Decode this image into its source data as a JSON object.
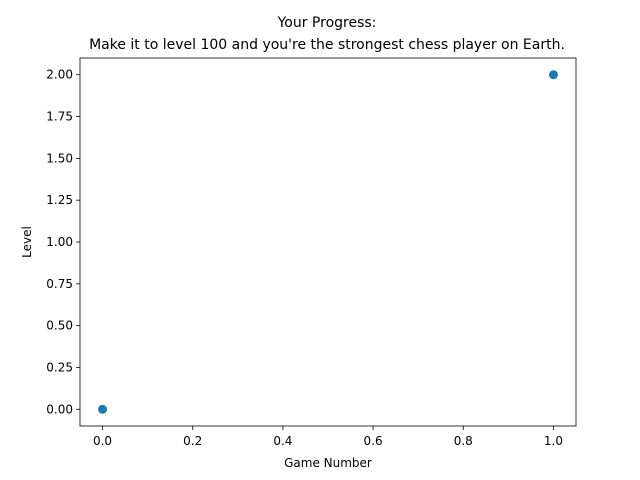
{
  "chart_data": {
    "type": "scatter",
    "title_line1": "Your Progress:",
    "title_line2": "Make it to level 100 and you're the strongest chess player on Earth.",
    "xlabel": "Game Number",
    "ylabel": "Level",
    "xlim": [
      -0.05,
      1.05
    ],
    "ylim": [
      -0.1,
      2.1
    ],
    "grid": false,
    "x_ticks": [
      "0.0",
      "0.2",
      "0.4",
      "0.6",
      "0.8",
      "1.0"
    ],
    "y_ticks": [
      "0.00",
      "0.25",
      "0.50",
      "0.75",
      "1.00",
      "1.25",
      "1.50",
      "1.75",
      "2.00"
    ],
    "series": [
      {
        "x": [
          0,
          1
        ],
        "y": [
          0,
          2
        ]
      }
    ],
    "colors": {
      "marker": "#1f77b4",
      "axis": "#000000"
    }
  }
}
